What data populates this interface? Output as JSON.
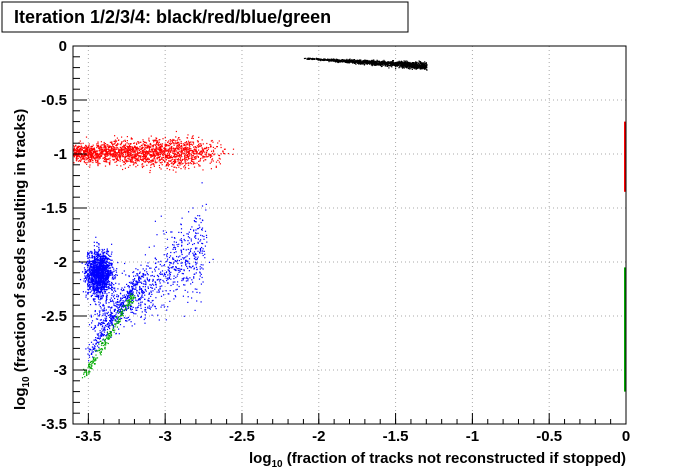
{
  "chart_data": {
    "type": "scatter",
    "title": "Iteration 1/2/3/4: black/red/blue/green",
    "xlabel_prefix": "log",
    "xlabel_sub": "10",
    "xlabel_rest": " (fraction of tracks not reconstructed if stopped)",
    "ylabel_prefix": "log",
    "ylabel_sub": "10",
    "ylabel_rest": " (fraction of seeds resulting in tracks)",
    "xlim": [
      -3.6,
      0
    ],
    "ylim": [
      -3.5,
      0
    ],
    "xticks": [
      -3.5,
      -3,
      -2.5,
      -2,
      -1.5,
      -1,
      -0.5,
      0
    ],
    "xtick_labels": [
      "-3.5",
      "-3",
      "-2.5",
      "-2",
      "-1.5",
      "-1",
      "-0.5",
      "0"
    ],
    "yticks": [
      0,
      -0.5,
      -1,
      -1.5,
      -2,
      -2.5,
      -3,
      -3.5
    ],
    "ytick_labels": [
      "0",
      "-0.5",
      "-1",
      "-1.5",
      "-2",
      "-2.5",
      "-3",
      "-3.5"
    ],
    "grid": true,
    "series": [
      {
        "color": "#000000",
        "x_range": [
          -2.1,
          -1.3
        ],
        "y_center": -0.13,
        "y_spread": 0.06
      },
      {
        "color": "#ff0000",
        "x_range": [
          -3.5,
          -2.2
        ],
        "y_center": -0.98,
        "y_spread": 0.15
      },
      {
        "color": "#0000ff",
        "x_range": [
          -3.6,
          -2.7
        ],
        "y_center": -2.1,
        "y_spread": 0.35
      },
      {
        "color": "#00aa00",
        "x_range": [
          -3.55,
          -3.2
        ],
        "y_center": -2.7,
        "y_spread": 0.35
      }
    ],
    "edge_strips": [
      {
        "color": "#ff0000",
        "x": 0,
        "y_range": [
          -0.7,
          -1.35
        ]
      },
      {
        "color": "#00aa00",
        "x": 0,
        "y_range": [
          -2.05,
          -3.2
        ]
      }
    ]
  }
}
